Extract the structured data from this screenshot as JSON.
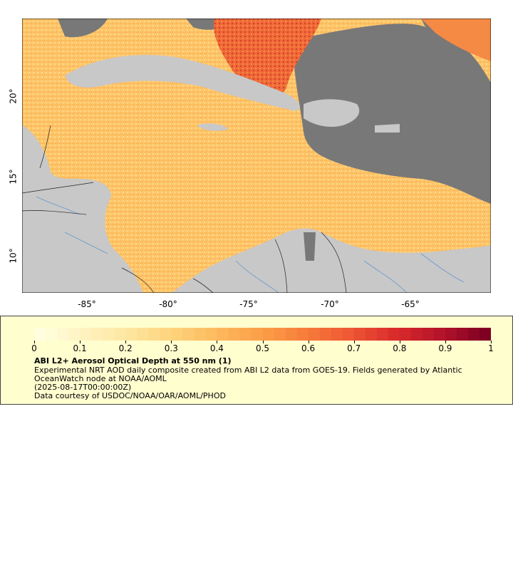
{
  "map": {
    "x_ticks": [
      "-85°",
      "-80°",
      "-75°",
      "-70°",
      "-65°"
    ],
    "y_ticks": [
      "20°",
      "15°",
      "10°"
    ],
    "extent": {
      "lon_min": -89,
      "lon_max": -60,
      "lat_min": 8,
      "lat_max": 25
    },
    "colors": {
      "land": "#c8c8c8",
      "no_data": "#787878",
      "rivers": "#6699cc",
      "borders": "#222222"
    }
  },
  "colorbar": {
    "tick_labels": [
      "0",
      "0.1",
      "0.2",
      "0.3",
      "0.4",
      "0.5",
      "0.6",
      "0.7",
      "0.8",
      "0.9",
      "1"
    ],
    "range": [
      0,
      1
    ],
    "colors": [
      "#ffffe0",
      "#fff2c0",
      "#fee6a0",
      "#fed27a",
      "#fdb95e",
      "#fc9e48",
      "#f77c3a",
      "#ee5634",
      "#d92b2b",
      "#b5132a",
      "#7f0022"
    ]
  },
  "legend": {
    "title": "ABI L2+ Aerosol Optical Depth at 550 nm (1)",
    "line1": "Experimental NRT AOD daily composite created from ABI L2 data from GOES-19. Fields generated by Atlantic",
    "line2": "OceanWatch node at NOAA/AOML",
    "line3": "(2025-08-17T00:00:00Z)",
    "line4": "Data courtesy of USDOC/NOAA/OAR/AOML/PHOD"
  }
}
